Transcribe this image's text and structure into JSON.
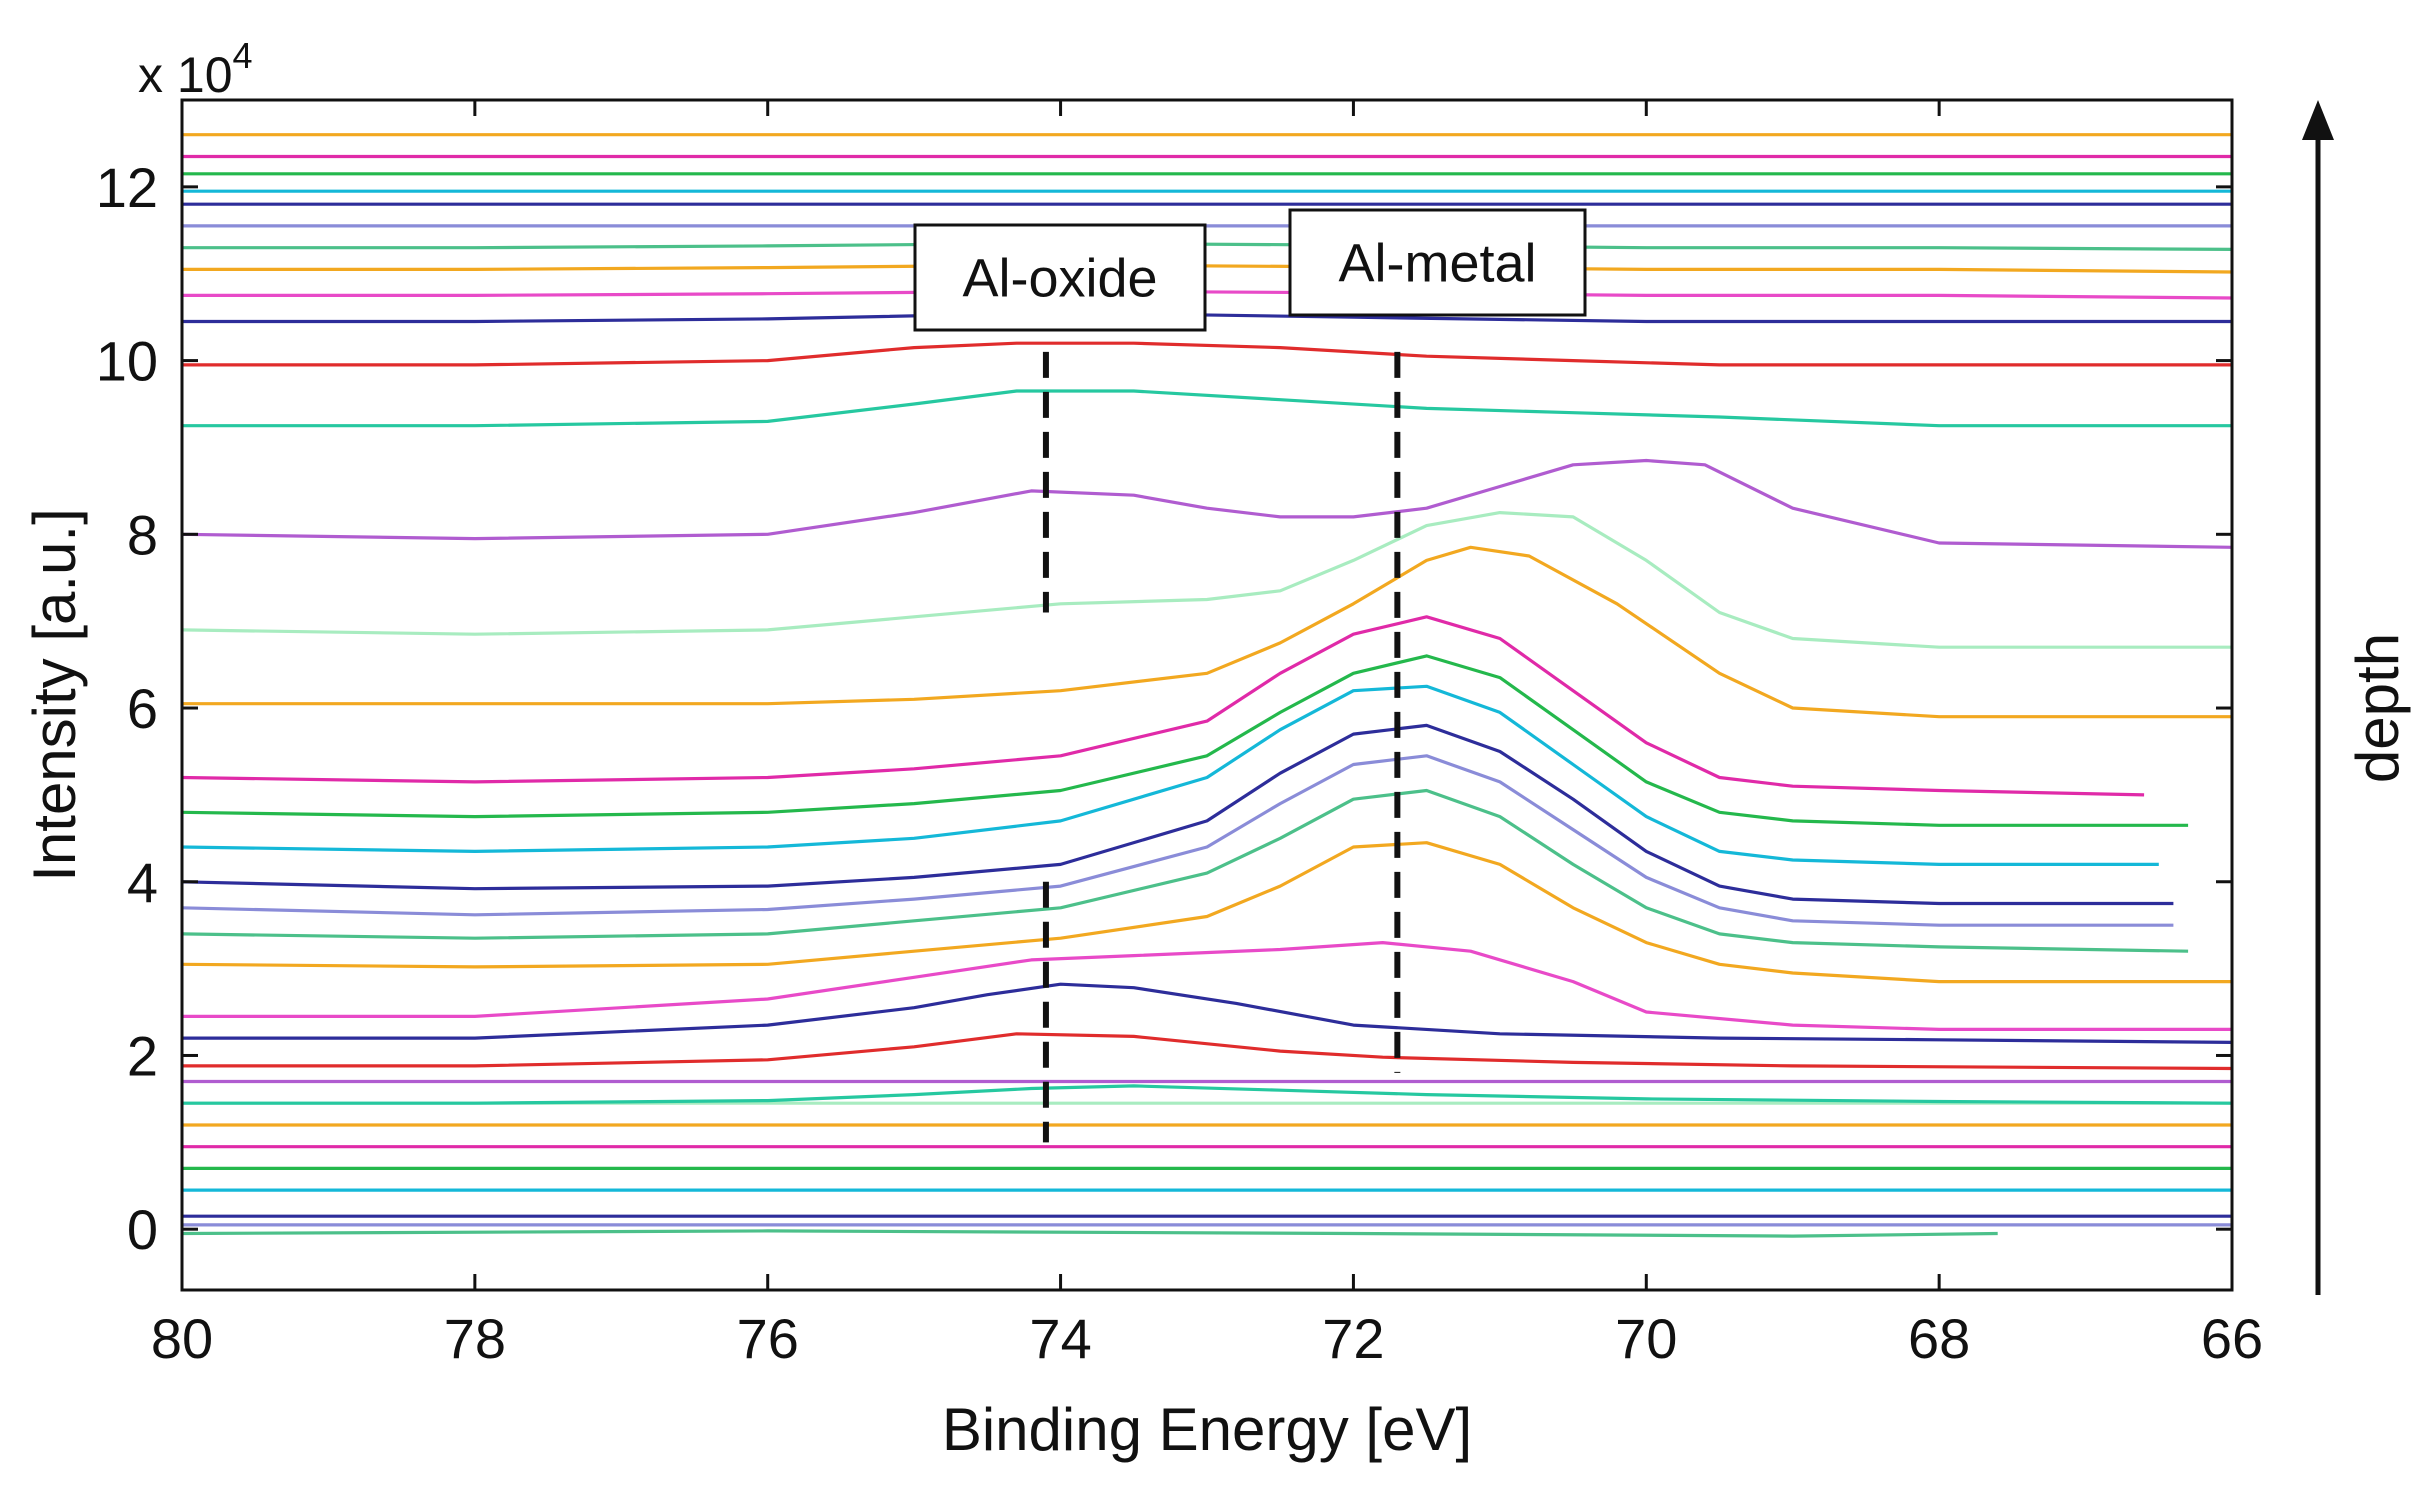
{
  "chart_data": {
    "type": "line",
    "title": "",
    "xlabel": "Binding Energy [eV]",
    "ylabel": "Intensity [a.u.]",
    "y_multiplier_label": "x 10",
    "y_multiplier_exponent": "4",
    "xlim": [
      80,
      66
    ],
    "ylim": [
      -0.7,
      13
    ],
    "x_reversed": true,
    "grid": false,
    "legend": "none",
    "xticks": [
      "80",
      "78",
      "76",
      "74",
      "72",
      "70",
      "68",
      "66"
    ],
    "yticks": [
      "0",
      "2",
      "4",
      "6",
      "8",
      "10",
      "12"
    ],
    "series_colors": [
      "#4cc08a",
      "#8a8cd8",
      "#2d2d9a",
      "#14b8d8",
      "#24b84c",
      "#e02aa8",
      "#f2a820",
      "#a8ecc0",
      "#b05cd0",
      "#26c8a0",
      "#e02c2c",
      "#2d2d9a",
      "#e84ac8",
      "#f2a820"
    ],
    "annotations": [
      {
        "text": "Al-oxide",
        "x": 74.1
      },
      {
        "text": "Al-metal",
        "x": 71.7
      }
    ],
    "side_label": "depth",
    "series": [
      {
        "x": [
          80,
          76,
          72,
          69,
          67.6
        ],
        "y": [
          -0.05,
          -0.02,
          -0.05,
          -0.08,
          -0.05
        ]
      },
      {
        "x": [
          80,
          70,
          66
        ],
        "y": [
          0.05,
          0.05,
          0.05
        ]
      },
      {
        "x": [
          80,
          66
        ],
        "y": [
          0.15,
          0.15
        ]
      },
      {
        "x": [
          80,
          66
        ],
        "y": [
          0.45,
          0.45
        ]
      },
      {
        "x": [
          80,
          66
        ],
        "y": [
          0.7,
          0.7
        ]
      },
      {
        "x": [
          80,
          66
        ],
        "y": [
          0.95,
          0.95
        ]
      },
      {
        "x": [
          80,
          66
        ],
        "y": [
          1.2,
          1.2
        ]
      },
      {
        "x": [
          80,
          66
        ],
        "y": [
          1.45,
          1.45
        ]
      },
      {
        "x": [
          80,
          66
        ],
        "y": [
          1.7,
          1.7
        ]
      },
      {
        "x": [
          80,
          78,
          76,
          75,
          74.2,
          73.5,
          72.5,
          71.5,
          70,
          68,
          66
        ],
        "y": [
          1.45,
          1.45,
          1.48,
          1.55,
          1.62,
          1.65,
          1.6,
          1.55,
          1.5,
          1.47,
          1.45
        ]
      },
      {
        "x": [
          80,
          78,
          76,
          75,
          74.3,
          73.5,
          72.5,
          71.8,
          70.5,
          69,
          66
        ],
        "y": [
          1.88,
          1.88,
          1.95,
          2.1,
          2.25,
          2.22,
          2.05,
          1.98,
          1.92,
          1.88,
          1.85
        ]
      },
      {
        "x": [
          80,
          78,
          76,
          75,
          74.5,
          74,
          73.5,
          72.8,
          72,
          71,
          69.5,
          68,
          66
        ],
        "y": [
          2.2,
          2.2,
          2.35,
          2.55,
          2.7,
          2.82,
          2.78,
          2.6,
          2.35,
          2.25,
          2.2,
          2.18,
          2.15
        ]
      },
      {
        "x": [
          80,
          78,
          76,
          75,
          74.2,
          73.5,
          72.5,
          71.8,
          71.2,
          70.5,
          70,
          69,
          68,
          66
        ],
        "y": [
          2.45,
          2.45,
          2.65,
          2.9,
          3.1,
          3.15,
          3.22,
          3.3,
          3.2,
          2.85,
          2.5,
          2.35,
          2.3,
          2.3
        ]
      },
      {
        "x": [
          80,
          78,
          76,
          75,
          74,
          73,
          72.5,
          72,
          71.5,
          71,
          70.5,
          70,
          69.5,
          69,
          68,
          66
        ],
        "y": [
          3.05,
          3.02,
          3.05,
          3.2,
          3.35,
          3.6,
          3.95,
          4.4,
          4.45,
          4.2,
          3.7,
          3.3,
          3.05,
          2.95,
          2.85,
          2.85
        ]
      },
      {
        "x": [
          80,
          78,
          76,
          75,
          74,
          73,
          72.5,
          72,
          71.5,
          71,
          70.5,
          70,
          69.5,
          69,
          68,
          66.3
        ],
        "y": [
          3.4,
          3.35,
          3.4,
          3.55,
          3.7,
          4.1,
          4.5,
          4.95,
          5.05,
          4.75,
          4.2,
          3.7,
          3.4,
          3.3,
          3.25,
          3.2
        ]
      },
      {
        "x": [
          80,
          78,
          76,
          75,
          74,
          73,
          72.5,
          72,
          71.5,
          71,
          70.5,
          70,
          69.5,
          69,
          68,
          66.4
        ],
        "y": [
          3.7,
          3.62,
          3.68,
          3.8,
          3.95,
          4.4,
          4.9,
          5.35,
          5.45,
          5.15,
          4.6,
          4.05,
          3.7,
          3.55,
          3.5,
          3.5
        ]
      },
      {
        "x": [
          80,
          78,
          76,
          75,
          74,
          73,
          72.5,
          72,
          71.5,
          71,
          70.5,
          70,
          69.5,
          69,
          68,
          66.4
        ],
        "y": [
          4.0,
          3.92,
          3.95,
          4.05,
          4.2,
          4.7,
          5.25,
          5.7,
          5.8,
          5.5,
          4.95,
          4.35,
          3.95,
          3.8,
          3.75,
          3.75
        ]
      },
      {
        "x": [
          80,
          78,
          76,
          75,
          74,
          73,
          72.5,
          72,
          71.5,
          71,
          70.5,
          70,
          69.5,
          69,
          68,
          66.5
        ],
        "y": [
          4.4,
          4.35,
          4.4,
          4.5,
          4.7,
          5.2,
          5.75,
          6.2,
          6.25,
          5.95,
          5.35,
          4.75,
          4.35,
          4.25,
          4.2,
          4.2
        ]
      },
      {
        "x": [
          80,
          78,
          76,
          75,
          74,
          73,
          72.5,
          72,
          71.5,
          71,
          70.5,
          70,
          69.5,
          69,
          68,
          66.3
        ],
        "y": [
          4.8,
          4.75,
          4.8,
          4.9,
          5.05,
          5.45,
          5.95,
          6.4,
          6.6,
          6.35,
          5.75,
          5.15,
          4.8,
          4.7,
          4.65,
          4.65
        ]
      },
      {
        "x": [
          80,
          78,
          76,
          75,
          74,
          73,
          72.5,
          72,
          71.5,
          71,
          70.5,
          70,
          69.5,
          69,
          68,
          66.6
        ],
        "y": [
          5.2,
          5.15,
          5.2,
          5.3,
          5.45,
          5.85,
          6.4,
          6.85,
          7.05,
          6.8,
          6.2,
          5.6,
          5.2,
          5.1,
          5.05,
          5.0
        ]
      },
      {
        "x": [
          80,
          78,
          76,
          75,
          74,
          73,
          72.5,
          72,
          71.5,
          71.2,
          70.8,
          70.2,
          69.5,
          69,
          68,
          66
        ],
        "y": [
          6.05,
          6.05,
          6.05,
          6.1,
          6.2,
          6.4,
          6.75,
          7.2,
          7.7,
          7.85,
          7.75,
          7.2,
          6.4,
          6.0,
          5.9,
          5.9
        ]
      },
      {
        "x": [
          80,
          78,
          76,
          75,
          74,
          73,
          72.5,
          72,
          71.5,
          71,
          70.5,
          70,
          69.5,
          69,
          68,
          66
        ],
        "y": [
          6.9,
          6.85,
          6.9,
          7.05,
          7.2,
          7.25,
          7.35,
          7.7,
          8.1,
          8.25,
          8.2,
          7.7,
          7.1,
          6.8,
          6.7,
          6.7
        ]
      },
      {
        "x": [
          80,
          78,
          76,
          75,
          74.2,
          73.5,
          73,
          72.5,
          72,
          71.5,
          71,
          70.5,
          70,
          69.6,
          69,
          68,
          66
        ],
        "y": [
          8.0,
          7.95,
          8.0,
          8.25,
          8.5,
          8.45,
          8.3,
          8.2,
          8.2,
          8.3,
          8.55,
          8.8,
          8.85,
          8.8,
          8.3,
          7.9,
          7.85
        ]
      },
      {
        "x": [
          80,
          78,
          76,
          75,
          74.3,
          73.5,
          72.5,
          71.5,
          70.5,
          69.5,
          68,
          66
        ],
        "y": [
          9.25,
          9.25,
          9.3,
          9.5,
          9.65,
          9.65,
          9.55,
          9.45,
          9.4,
          9.35,
          9.25,
          9.25
        ]
      },
      {
        "x": [
          80,
          78,
          76,
          75,
          74.3,
          73.5,
          72.5,
          71.5,
          70.5,
          69.5,
          68,
          66
        ],
        "y": [
          9.95,
          9.95,
          10.0,
          10.15,
          10.2,
          10.2,
          10.15,
          10.05,
          10.0,
          9.95,
          9.95,
          9.95
        ]
      },
      {
        "x": [
          80,
          78,
          76,
          74,
          72,
          70,
          68,
          66
        ],
        "y": [
          10.45,
          10.45,
          10.48,
          10.55,
          10.5,
          10.45,
          10.45,
          10.45
        ]
      },
      {
        "x": [
          80,
          78,
          76,
          74,
          72,
          70,
          68,
          66
        ],
        "y": [
          10.75,
          10.75,
          10.77,
          10.8,
          10.78,
          10.75,
          10.75,
          10.72
        ]
      },
      {
        "x": [
          80,
          78,
          76,
          74,
          72,
          70,
          68,
          66
        ],
        "y": [
          11.05,
          11.05,
          11.07,
          11.1,
          11.08,
          11.05,
          11.05,
          11.02
        ]
      },
      {
        "x": [
          80,
          78,
          76,
          74,
          72,
          70,
          68,
          66
        ],
        "y": [
          11.3,
          11.3,
          11.32,
          11.35,
          11.33,
          11.3,
          11.3,
          11.28
        ]
      },
      {
        "x": [
          80,
          66
        ],
        "y": [
          11.55,
          11.55
        ]
      },
      {
        "x": [
          80,
          66
        ],
        "y": [
          11.8,
          11.8
        ]
      },
      {
        "x": [
          80,
          66
        ],
        "y": [
          11.95,
          11.95
        ]
      },
      {
        "x": [
          80,
          66
        ],
        "y": [
          12.15,
          12.15
        ]
      },
      {
        "x": [
          80,
          66
        ],
        "y": [
          12.35,
          12.35
        ]
      },
      {
        "x": [
          80,
          66
        ],
        "y": [
          12.6,
          12.6
        ]
      }
    ]
  }
}
